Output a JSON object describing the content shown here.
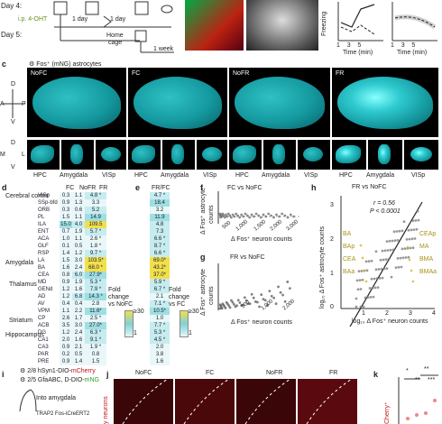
{
  "top": {
    "day4_label": "Day 4:",
    "day5_label": "Day 5:",
    "ip_label": "i.p. 4-OHT",
    "one_day_1": "1 day",
    "one_day_2": "1 day",
    "home_cage_line1": "Home",
    "home_cage_line2": "cage",
    "one_week": "1 week",
    "freezing_axis": "Freezing",
    "time_label_1": "Time (min)",
    "time_label_2": "Time (min)",
    "ticks_1": [
      "1",
      "3",
      "5"
    ],
    "ticks_2": [
      "1",
      "3",
      "5"
    ]
  },
  "panel_c": {
    "letter": "c",
    "legend": "Fos⁺ (mNG) astrocytes",
    "conditions": [
      "NoFC",
      "FC",
      "NoFR",
      "FR"
    ],
    "region_labels": [
      "HPC",
      "Amygdala",
      "VISp",
      "HPC",
      "Amygdala",
      "VISp",
      "HPC",
      "Amygdala",
      "VISp",
      "HPC",
      "Amygdala",
      "VISp"
    ],
    "compass1": {
      "d": "D",
      "v": "V",
      "a": "A",
      "p": "P",
      "l": "L"
    },
    "compass2": {
      "d": "D",
      "v": "V",
      "m": "M",
      "l": "L"
    }
  },
  "panel_d": {
    "letter": "d",
    "columns": [
      "FC",
      "NoFR",
      "FR"
    ],
    "group_labels": [
      "Cerebral cortex",
      "Amygdala",
      "Thalamus",
      "Striatum",
      "Hippocampus"
    ],
    "rows": [
      {
        "name": "VISp",
        "v": [
          "0.3",
          "1.1",
          "4.8 *"
        ]
      },
      {
        "name": "SSp-bfd",
        "v": [
          "0.9",
          "1.3",
          "3.3"
        ]
      },
      {
        "name": "ORB",
        "v": [
          "0.3",
          "0.6",
          "5.2"
        ]
      },
      {
        "name": "PL",
        "v": [
          "1.5",
          "1.1",
          "14.9"
        ]
      },
      {
        "name": "ILA",
        "v": [
          "15.0",
          "4.0",
          "109.5"
        ]
      },
      {
        "name": "ENT",
        "v": [
          "0.7",
          "1.9",
          "5.7 *"
        ]
      },
      {
        "name": "ACA",
        "v": [
          "1.0",
          "1.1",
          "2.6 *"
        ]
      },
      {
        "name": "OLF",
        "v": [
          "0.1",
          "0.5",
          "1.8 *"
        ]
      },
      {
        "name": "RSP",
        "v": [
          "1.4",
          "1.2",
          "9.7 *"
        ]
      },
      {
        "name": "LA",
        "v": [
          "1.5",
          "3.0",
          "103.5*"
        ]
      },
      {
        "name": "BA",
        "v": [
          "1.6",
          "2.4",
          "68.0 *"
        ]
      },
      {
        "name": "CEA",
        "v": [
          "0.8",
          "6.0",
          "27.9*"
        ]
      },
      {
        "name": "MD",
        "v": [
          "0.9",
          "1.9",
          "5.3 *"
        ]
      },
      {
        "name": "GENd",
        "v": [
          "1.2",
          "1.6",
          "7.9 *"
        ]
      },
      {
        "name": "AD",
        "v": [
          "1.2",
          "6.8",
          "14.3 *"
        ]
      },
      {
        "name": "AV",
        "v": [
          "0.4",
          "0.4",
          "2.8"
        ]
      },
      {
        "name": "VPM",
        "v": [
          "1.1",
          "2.2",
          "11.6*"
        ]
      },
      {
        "name": "CP",
        "v": [
          "2.6",
          "1.7",
          "2.5 *"
        ]
      },
      {
        "name": "ACB",
        "v": [
          "3.5",
          "3.0",
          "27.0*"
        ]
      },
      {
        "name": "DG",
        "v": [
          "1.2",
          "2.4",
          "6.3 *"
        ]
      },
      {
        "name": "CA1",
        "v": [
          "2.0",
          "1.6",
          "9.1 *"
        ]
      },
      {
        "name": "CA3",
        "v": [
          "0.9",
          "2.1",
          "1.9 *"
        ]
      },
      {
        "name": "PAR",
        "v": [
          "0.2",
          "0.5",
          "0.8"
        ]
      },
      {
        "name": "PRE",
        "v": [
          "0.9",
          "1.4",
          "1.5"
        ]
      }
    ],
    "legend_lines": [
      "Fold",
      "change",
      "vs NoFC"
    ],
    "scale_top": "≥30",
    "scale_bottom": "1"
  },
  "panel_e": {
    "letter": "e",
    "header": "FR/FC",
    "values": [
      "4.7 *",
      "18.4",
      "3.2",
      "11.9",
      "4.8",
      "7.3",
      "6.6 *",
      "8.7 *",
      "6.6 *",
      "69.0*",
      "43.2*",
      "37.0*",
      "5.9 *",
      "6.7 *",
      "2.1",
      "7.1 *",
      "10.5*",
      "1.0",
      "7.7 *",
      "5.3 *",
      "4.5 *",
      "2.0",
      "3.8",
      "1.6"
    ],
    "legend_lines": [
      "Fold",
      "change",
      "vs FC"
    ],
    "scale_top": "≥30",
    "scale_bottom": "1"
  },
  "panel_f": {
    "letter": "f",
    "title": "FC vs NoFC",
    "ylabel_lines": [
      "Δ Fos⁺ astrocyte",
      "counts"
    ],
    "xlabel": "Δ Fos⁺ neuron counts",
    "xticks": [
      "500",
      "1,000",
      "1,500",
      "2,000",
      "3,000"
    ],
    "yticks": [
      "0",
      "50",
      "100"
    ]
  },
  "panel_g": {
    "letter": "g",
    "title": "FR vs NoFC",
    "ylabel_lines": [
      "Δ Fos⁺ astrocyte",
      "counts"
    ],
    "xlabel": "Δ Fos⁺ neuron counts",
    "xticks": [
      "500",
      "1,000",
      "2,000"
    ],
    "yticks": [
      "0",
      "50",
      "100"
    ]
  },
  "panel_h": {
    "letter": "h",
    "title": "FR vs NoFC",
    "r_text": "r = 0.56",
    "p_text": "P < 0.0001",
    "ylabel": "log₁₀ Δ Fos⁺ astrocyte counts",
    "xlabel": "log₁₀ Δ Fos⁺ neuron counts",
    "xticks": [
      "1",
      "2",
      "3",
      "4"
    ],
    "yticks": [
      "0",
      "1",
      "2",
      "3"
    ],
    "point_labels_left": [
      "BA",
      "BAp",
      "CEA",
      "BAa"
    ],
    "point_labels_right": [
      "CEAp",
      "MA",
      "BMA",
      "BMAa"
    ]
  },
  "panel_i": {
    "letter": "i",
    "line1_a": "2/8 hSyn1-DIO-",
    "line1_b": "mCherry",
    "line2_a": "2/5 GfaABC",
    "line2_b": "D-DIO-",
    "line2_c": "mNG",
    "line3": "Into amygdala",
    "line4": "TRAP2 Fos-iCreERT2"
  },
  "panel_j": {
    "letter": "j",
    "conditions": [
      "NoFC",
      "FC",
      "NoFR",
      "FR"
    ],
    "side_label": "y neurons"
  },
  "panel_k": {
    "letter": "k",
    "sig": [
      "*",
      "**",
      "**",
      "***"
    ],
    "ylabel": "Cherry⁺"
  },
  "colors": {
    "teal_dark": "#0a5f66",
    "teal": "#14999f",
    "yellow": "#f5e43a",
    "heat_low": "#e6f5f8",
    "heat_mid": "#7fd2d6",
    "heat_high": "#f2e04a",
    "red": "#b5121b",
    "line": "#333333"
  }
}
